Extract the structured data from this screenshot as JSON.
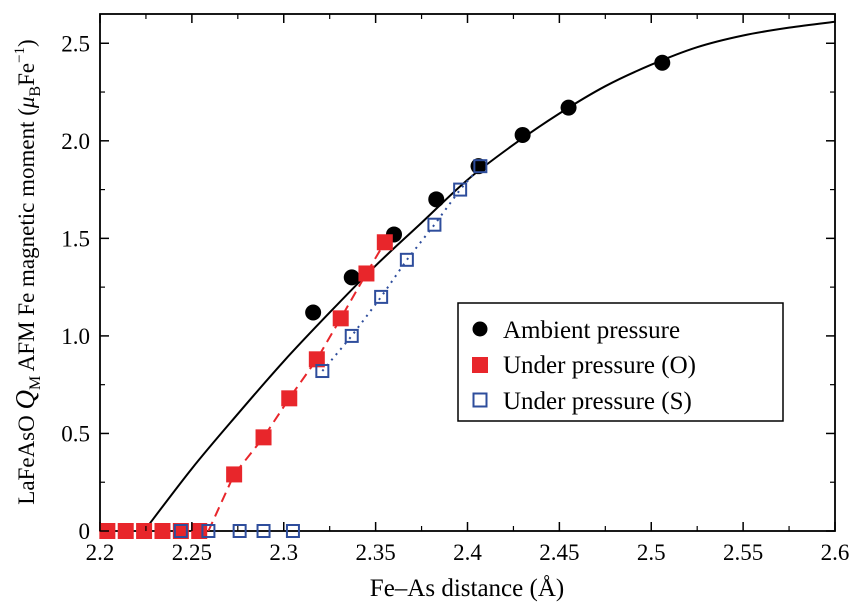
{
  "chart_data": {
    "type": "scatter",
    "xlabel": "Fe–As distance (Å)",
    "ylabel": {
      "main": "LaFeAsO ",
      "q": "Q",
      "q_sub": "M",
      "mid": " AFM  Fe magnetic moment (",
      "mu": "μ",
      "mu_sub": "B",
      "fe": "Fe",
      "fe_sup": "−1",
      "close": ")"
    },
    "xlim": [
      2.2,
      2.6
    ],
    "ylim": [
      0,
      2.65
    ],
    "x_ticks": [
      2.2,
      2.25,
      2.3,
      2.35,
      2.4,
      2.45,
      2.5,
      2.55,
      2.6
    ],
    "x_tick_labels": [
      "2.2",
      "2.25",
      "2.3",
      "2.35",
      "2.4",
      "2.45",
      "2.5",
      "2.55",
      "2.6"
    ],
    "y_ticks": [
      0,
      0.5,
      1.0,
      1.5,
      2.0,
      2.5
    ],
    "y_tick_labels": [
      "0",
      "0.5",
      "1.0",
      "1.5",
      "2.0",
      "2.5"
    ],
    "grid": false,
    "legend_position": "center-right",
    "series": [
      {
        "name": "Ambient pressure",
        "marker": "filled-circle",
        "color": "#000000",
        "x": [
          2.316,
          2.337,
          2.36,
          2.383,
          2.406,
          2.43,
          2.455,
          2.506
        ],
        "y": [
          1.12,
          1.3,
          1.52,
          1.7,
          1.87,
          2.03,
          2.17,
          2.4
        ]
      },
      {
        "name": "Under pressure (O)",
        "marker": "filled-square",
        "color": "#e8262b",
        "x": [
          2.204,
          2.214,
          2.224,
          2.234,
          2.244,
          2.254,
          2.273,
          2.289,
          2.303,
          2.318,
          2.331,
          2.345,
          2.355
        ],
        "y": [
          0,
          0,
          0,
          0,
          0,
          0,
          0.29,
          0.48,
          0.68,
          0.88,
          1.09,
          1.32,
          1.48
        ]
      },
      {
        "name": "Under pressure (S)",
        "marker": "open-square",
        "color": "#2e4d9c",
        "x": [
          2.244,
          2.259,
          2.276,
          2.289,
          2.305,
          2.321,
          2.337,
          2.353,
          2.367,
          2.382,
          2.396,
          2.407
        ],
        "y": [
          0,
          0,
          0,
          0,
          0,
          0.82,
          1.0,
          1.2,
          1.39,
          1.57,
          1.75,
          1.87
        ]
      }
    ],
    "curves": [
      {
        "style": "solid",
        "color": "#000000",
        "x": [
          2.224,
          2.25,
          2.275,
          2.3,
          2.325,
          2.35,
          2.375,
          2.4,
          2.425,
          2.45,
          2.475,
          2.5,
          2.525,
          2.55,
          2.575,
          2.6
        ],
        "y": [
          0,
          0.32,
          0.6,
          0.87,
          1.12,
          1.36,
          1.58,
          1.8,
          1.98,
          2.14,
          2.28,
          2.39,
          2.48,
          2.54,
          2.58,
          2.61
        ]
      },
      {
        "style": "dashed",
        "color": "#e8262b",
        "x": [
          2.259,
          2.273,
          2.289,
          2.303,
          2.318,
          2.331,
          2.345,
          2.355
        ],
        "y": [
          0,
          0.29,
          0.48,
          0.68,
          0.88,
          1.09,
          1.32,
          1.48
        ]
      },
      {
        "style": "dotted",
        "color": "#2e4d9c",
        "x": [
          2.321,
          2.337,
          2.353,
          2.367,
          2.382,
          2.396,
          2.407
        ],
        "y": [
          0.82,
          1.0,
          1.2,
          1.39,
          1.57,
          1.75,
          1.87
        ]
      }
    ]
  }
}
